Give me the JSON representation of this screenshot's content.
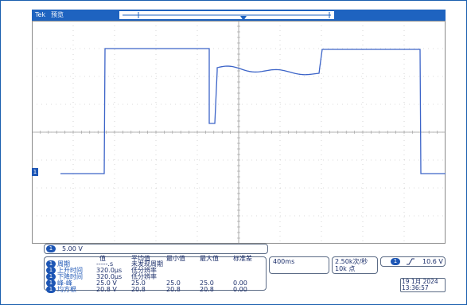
{
  "header": {
    "tek_label": "Tek",
    "mode_label": "预览"
  },
  "channel": {
    "id": "1",
    "scale": "5.00 V"
  },
  "measurements": {
    "headers": [
      "值",
      "平均值",
      "最小值",
      "最大值",
      "标准差"
    ],
    "rows": [
      {
        "name": "周期",
        "value": "-----.s",
        "mean": "未发现周期",
        "min": "",
        "max": "",
        "std": ""
      },
      {
        "name": "上升时间",
        "value": "320.0μs",
        "mean": "低分辨率",
        "min": "",
        "max": "",
        "std": ""
      },
      {
        "name": "下降时间",
        "value": "320.0μs",
        "mean": "低分辨率",
        "min": "",
        "max": "",
        "std": ""
      },
      {
        "name": "峰-峰",
        "value": "25.0 V",
        "mean": "25.0",
        "min": "25.0",
        "max": "25.0",
        "std": "0.00"
      },
      {
        "name": "均方根",
        "value": "20.8 V",
        "mean": "20.8",
        "min": "20.8",
        "max": "20.8",
        "std": "0.00"
      }
    ]
  },
  "timebase": {
    "scale": "400ms"
  },
  "acquisition": {
    "rate": "2.50k次/秒",
    "points": "10k 点"
  },
  "trigger": {
    "channel": "1",
    "slope_icon": "rising-edge-icon",
    "level": "10.6 V"
  },
  "datetime": {
    "date": "19 1月  2024",
    "time": "13:36:57"
  },
  "colors": {
    "trace": "#3c64c8",
    "accent": "#1d56b5",
    "topbar": "#1e63c0",
    "grid": "#b8b8b8"
  }
}
